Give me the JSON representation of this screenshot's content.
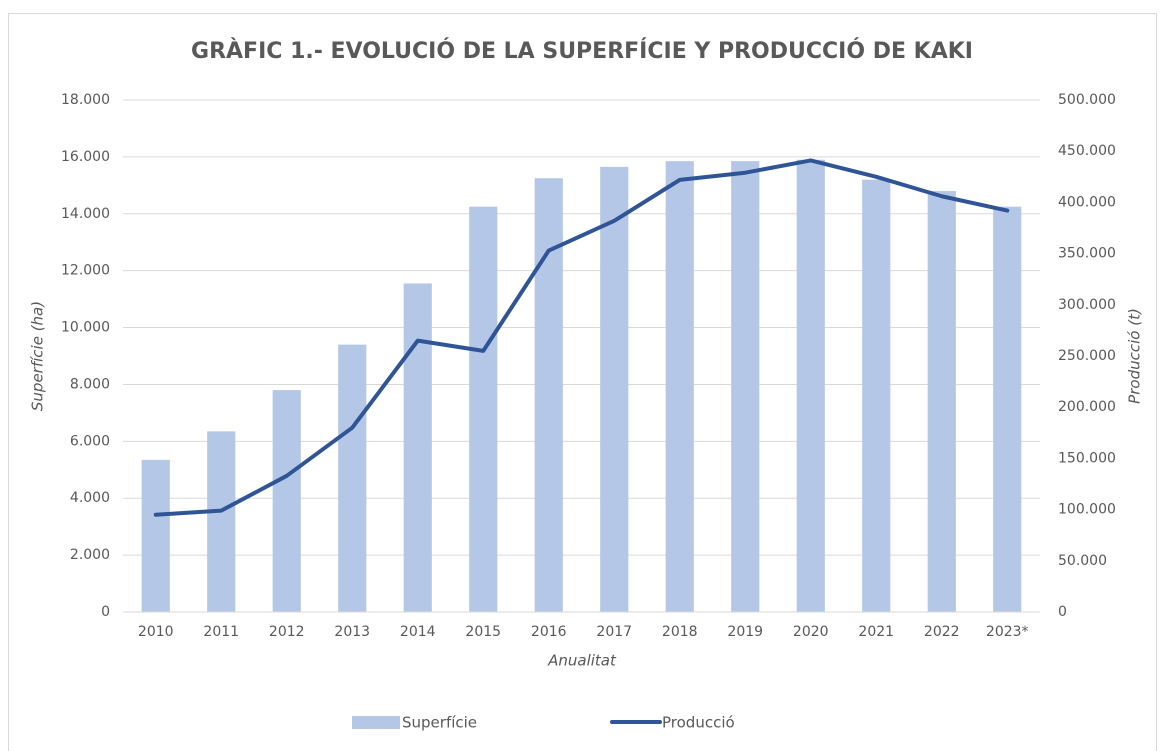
{
  "chart_data": {
    "type": "bar_line",
    "title": "GRÀFIC 1.- EVOLUCIÓ DE LA SUPERFÍCIE Y PRODUCCIÓ DE KAKI",
    "x_label": "Anualitat",
    "y_label": "Superfície (ha)",
    "y2_label": "Producció (t)",
    "categories": [
      "2010",
      "2011",
      "2012",
      "2013",
      "2014",
      "2015",
      "2016",
      "2017",
      "2018",
      "2019",
      "2020",
      "2021",
      "2022",
      "2023*"
    ],
    "series": [
      {
        "name": "Superfície",
        "type": "bar",
        "color": "#b4c7e7",
        "axis": "y",
        "values": [
          5350,
          6350,
          7800,
          9400,
          11550,
          14250,
          15250,
          15650,
          15850,
          15850,
          15900,
          15200,
          14800,
          14250
        ]
      },
      {
        "name": "Producció",
        "type": "line",
        "color": "#2f5597",
        "axis": "y2",
        "values": [
          95000,
          99000,
          133000,
          180000,
          265000,
          255000,
          353000,
          382000,
          422000,
          429000,
          441000,
          425000,
          406000,
          392000
        ]
      }
    ],
    "ylim": [
      0,
      18000
    ],
    "yticks": [
      0,
      {
        "value": 2000,
        "label": "2.000"
      },
      {
        "value": 4000,
        "label": "4.000"
      },
      {
        "value": 6000,
        "label": "6.000"
      },
      {
        "value": 8000,
        "label": "8.000"
      },
      {
        "value": 10000,
        "label": "10.000"
      },
      {
        "value": 12000,
        "label": "12.000"
      },
      {
        "value": 14000,
        "label": "14.000"
      },
      {
        "value": 16000,
        "label": "16.000"
      },
      {
        "value": 18000,
        "label": "18.000"
      }
    ],
    "y2lim": [
      0,
      500000
    ],
    "y2ticks": [
      0,
      {
        "value": 50000,
        "label": "50.000"
      },
      {
        "value": 100000,
        "label": "100.000"
      },
      {
        "value": 150000,
        "label": "150.000"
      },
      {
        "value": 200000,
        "label": "200.000"
      },
      {
        "value": 250000,
        "label": "250.000"
      },
      {
        "value": 300000,
        "label": "300.000"
      },
      {
        "value": 350000,
        "label": "350.000"
      },
      {
        "value": 400000,
        "label": "400.000"
      },
      {
        "value": 450000,
        "label": "450.000"
      },
      {
        "value": 500000,
        "label": "500.000"
      }
    ],
    "grid": true,
    "legend": "bottom"
  }
}
